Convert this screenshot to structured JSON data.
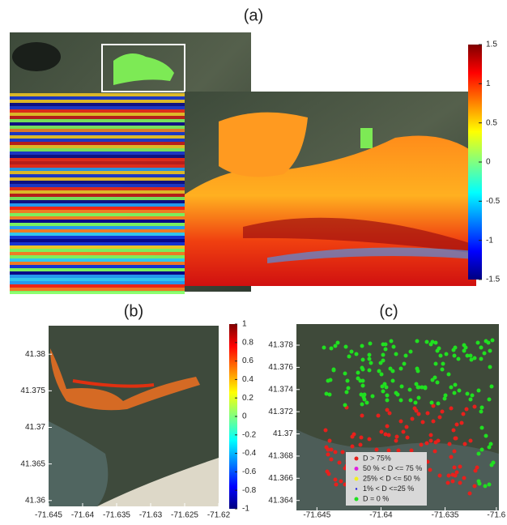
{
  "panel_a": {
    "label": "(a)",
    "colorbar": {
      "lim": [
        -1.5,
        1.5
      ],
      "ticks": [
        1.5,
        1,
        0.5,
        0,
        -0.5,
        -1,
        -1.5
      ]
    }
  },
  "panel_b": {
    "label": "(b)",
    "xlim": [
      -71.645,
      -71.62
    ],
    "ylim": [
      41.3592,
      41.3839
    ],
    "xticks": [
      -71.645,
      -71.64,
      -71.635,
      -71.63,
      -71.625,
      -71.62
    ],
    "yticks": [
      41.38,
      41.375,
      41.37,
      41.365,
      41.36
    ],
    "colorbar": {
      "lim": [
        -1,
        1
      ],
      "ticks": [
        1,
        0.8,
        0.6,
        0.4,
        0.2,
        0,
        -0.2,
        -0.4,
        -0.6,
        -0.8,
        -1
      ]
    }
  },
  "panel_c": {
    "label": "(c)",
    "xlim": [
      -71.6466,
      -71.6308
    ],
    "ylim": [
      41.3631,
      41.3799
    ],
    "xticks": [
      -71.645,
      -71.64,
      -71.635,
      {
        "value": -71.631,
        "label": "-71.6"
      }
    ],
    "yticks": [
      41.378,
      41.376,
      41.374,
      41.372,
      41.37,
      41.368,
      41.366,
      41.364
    ],
    "legend": [
      {
        "label": "D > 75%",
        "color": "#e8201c"
      },
      {
        "label": "50 % < D <= 75 %",
        "color": "#e020e0"
      },
      {
        "label": "25% < D <= 50 %",
        "color": "#f0f020"
      },
      {
        "label": "1% < D <=25 %",
        "color": "#2020e0"
      },
      {
        "label": "D = 0 %",
        "color": "#20e020"
      }
    ]
  }
}
